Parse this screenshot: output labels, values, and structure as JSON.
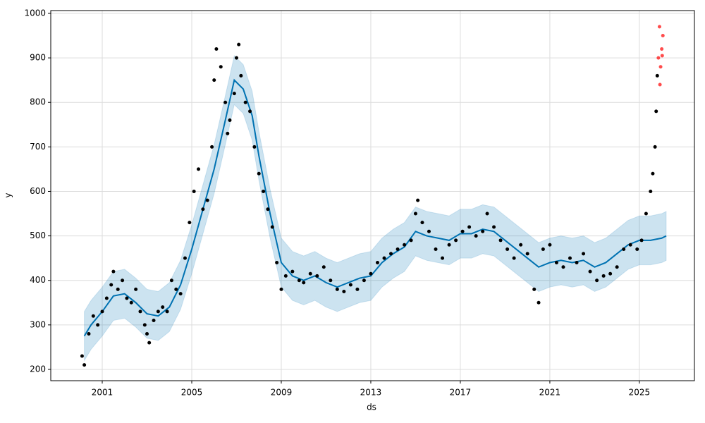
{
  "chart_data": {
    "type": "line",
    "xlabel": "ds",
    "ylabel": "y",
    "xlim": [
      1998.7,
      2027.46
    ],
    "ylim": [
      174.6,
      1006.3
    ],
    "xticks": [
      2001,
      2005,
      2009,
      2013,
      2017,
      2021,
      2025
    ],
    "yticks": [
      200,
      300,
      400,
      500,
      600,
      700,
      800,
      900,
      1000
    ],
    "grid": true,
    "series": [
      {
        "type": "area",
        "color": "#0072b2",
        "x": [
          2000.2,
          2000.5,
          2001,
          2001.5,
          2002,
          2002.5,
          2003,
          2003.5,
          2004,
          2004.5,
          2005,
          2005.5,
          2006,
          2006.5,
          2006.9,
          2007.3,
          2007.7,
          2008,
          2008.5,
          2009,
          2009.5,
          2010,
          2010.5,
          2011,
          2011.5,
          2012,
          2012.5,
          2013,
          2013.5,
          2014,
          2014.5,
          2015,
          2015.5,
          2016,
          2016.5,
          2017,
          2017.5,
          2018,
          2018.5,
          2019,
          2019.5,
          2020,
          2020.5,
          2021,
          2021.5,
          2022,
          2022.5,
          2023,
          2023.5,
          2024,
          2024.5,
          2025,
          2025.5,
          2026,
          2026.2
        ],
        "values": [
          330,
          355,
          385,
          420,
          425,
          405,
          380,
          375,
          395,
          445,
          525,
          615,
          705,
          815,
          905,
          885,
          825,
          735,
          605,
          495,
          465,
          455,
          465,
          450,
          440,
          450,
          460,
          465,
          495,
          515,
          530,
          565,
          555,
          550,
          545,
          560,
          560,
          570,
          565,
          545,
          525,
          505,
          485,
          495,
          500,
          495,
          500,
          485,
          495,
          515,
          535,
          545,
          545,
          550,
          555
        ],
        "lower": [
          220,
          245,
          275,
          310,
          315,
          295,
          270,
          265,
          285,
          335,
          415,
          505,
          595,
          705,
          795,
          775,
          715,
          625,
          495,
          385,
          355,
          345,
          355,
          340,
          330,
          340,
          350,
          355,
          385,
          405,
          420,
          455,
          445,
          440,
          435,
          450,
          450,
          460,
          455,
          435,
          415,
          395,
          375,
          385,
          390,
          385,
          390,
          375,
          385,
          405,
          425,
          435,
          435,
          440,
          445
        ]
      },
      {
        "type": "line",
        "color": "#0072b2",
        "x": [
          2000.2,
          2000.5,
          2001,
          2001.5,
          2002,
          2002.5,
          2003,
          2003.5,
          2004,
          2004.5,
          2005,
          2005.5,
          2006,
          2006.5,
          2006.9,
          2007.3,
          2007.7,
          2008,
          2008.5,
          2009,
          2009.5,
          2010,
          2010.5,
          2011,
          2011.5,
          2012,
          2012.5,
          2013,
          2013.5,
          2014,
          2014.5,
          2015,
          2015.5,
          2016,
          2016.5,
          2017,
          2017.5,
          2018,
          2018.5,
          2019,
          2019.5,
          2020,
          2020.5,
          2021,
          2021.5,
          2022,
          2022.5,
          2023,
          2023.5,
          2024,
          2024.5,
          2025,
          2025.5,
          2026,
          2026.2
        ],
        "values": [
          275,
          300,
          330,
          365,
          370,
          350,
          325,
          320,
          340,
          390,
          470,
          560,
          650,
          760,
          850,
          830,
          770,
          680,
          550,
          440,
          410,
          400,
          410,
          395,
          385,
          395,
          405,
          410,
          440,
          460,
          475,
          510,
          500,
          495,
          490,
          505,
          505,
          515,
          510,
          490,
          470,
          450,
          430,
          440,
          445,
          440,
          445,
          430,
          440,
          460,
          480,
          490,
          490,
          495,
          500
        ]
      },
      {
        "type": "scatter",
        "color": "#000000",
        "x": [
          2000.1,
          2000.2,
          2000.4,
          2000.6,
          2000.8,
          2001.0,
          2001.2,
          2001.4,
          2001.5,
          2001.7,
          2001.9,
          2002.1,
          2002.3,
          2002.5,
          2002.7,
          2002.9,
          2003.0,
          2003.1,
          2003.3,
          2003.5,
          2003.7,
          2003.9,
          2004.1,
          2004.3,
          2004.5,
          2004.7,
          2004.9,
          2005.1,
          2005.3,
          2005.5,
          2005.7,
          2005.9,
          2006.0,
          2006.1,
          2006.3,
          2006.5,
          2006.6,
          2006.7,
          2006.9,
          2007.0,
          2007.1,
          2007.2,
          2007.4,
          2007.6,
          2007.8,
          2008.0,
          2008.2,
          2008.4,
          2008.6,
          2008.8,
          2009.0,
          2009.2,
          2009.5,
          2009.8,
          2010.0,
          2010.3,
          2010.6,
          2010.9,
          2011.2,
          2011.5,
          2011.8,
          2012.1,
          2012.4,
          2012.7,
          2013.0,
          2013.3,
          2013.6,
          2013.9,
          2014.2,
          2014.5,
          2014.8,
          2015.0,
          2015.1,
          2015.3,
          2015.6,
          2015.9,
          2016.2,
          2016.5,
          2016.8,
          2017.1,
          2017.4,
          2017.7,
          2018.0,
          2018.2,
          2018.5,
          2018.8,
          2019.1,
          2019.4,
          2019.7,
          2020.0,
          2020.3,
          2020.5,
          2020.7,
          2021.0,
          2021.3,
          2021.6,
          2021.9,
          2022.2,
          2022.5,
          2022.8,
          2023.1,
          2023.4,
          2023.7,
          2024.0,
          2024.3,
          2024.6,
          2024.9,
          2025.1,
          2025.3,
          2025.5,
          2025.6,
          2025.7,
          2025.75,
          2025.8
        ],
        "values": [
          230,
          210,
          280,
          320,
          300,
          330,
          360,
          390,
          420,
          380,
          400,
          360,
          350,
          380,
          330,
          300,
          280,
          260,
          310,
          330,
          340,
          330,
          400,
          380,
          370,
          450,
          530,
          600,
          650,
          560,
          580,
          700,
          850,
          920,
          880,
          800,
          730,
          760,
          820,
          900,
          930,
          860,
          800,
          780,
          700,
          640,
          600,
          560,
          520,
          440,
          380,
          410,
          420,
          400,
          395,
          415,
          410,
          430,
          400,
          380,
          375,
          390,
          380,
          400,
          415,
          440,
          450,
          460,
          470,
          480,
          490,
          550,
          580,
          530,
          510,
          470,
          450,
          480,
          490,
          510,
          520,
          500,
          510,
          550,
          520,
          490,
          470,
          450,
          480,
          460,
          380,
          350,
          470,
          480,
          440,
          430,
          450,
          440,
          460,
          420,
          400,
          410,
          415,
          430,
          470,
          480,
          470,
          490,
          550,
          600,
          640,
          700,
          780,
          860
        ]
      },
      {
        "type": "scatter",
        "color": "#ff0000",
        "x": [
          2025.85,
          2025.9,
          2025.92,
          2025.95,
          2026.0,
          2026.02,
          2026.05
        ],
        "values": [
          900,
          970,
          840,
          880,
          920,
          905,
          950
        ]
      }
    ]
  }
}
